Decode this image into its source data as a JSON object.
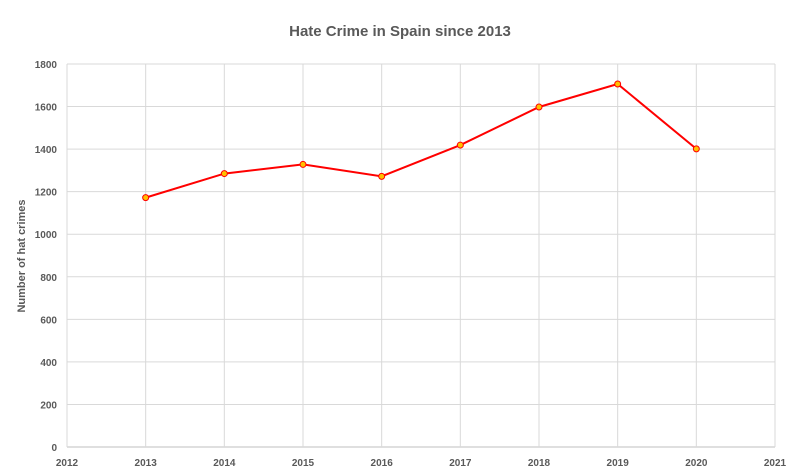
{
  "chart_data": {
    "type": "line",
    "title": "Hate Crime in Spain since 2013",
    "xlabel": "",
    "ylabel": "Number of hat crimes",
    "xlim": [
      2012,
      2021
    ],
    "ylim": [
      0,
      1800
    ],
    "xticks": [
      "2012",
      "2013",
      "2014",
      "2015",
      "2016",
      "2017",
      "2018",
      "2019",
      "2020",
      "2021"
    ],
    "yticks": [
      "0",
      "200",
      "400",
      "600",
      "800",
      "1000",
      "1200",
      "1400",
      "1600",
      "1800"
    ],
    "grid": true,
    "legend": "none",
    "series": [
      {
        "x": [
          2013,
          2014,
          2015,
          2016,
          2017,
          2018,
          2019,
          2020
        ],
        "values": [
          1172,
          1285,
          1328,
          1272,
          1419,
          1598,
          1706,
          1401
        ],
        "color": "#ff0000",
        "marker_fill": "#ffc000"
      }
    ]
  }
}
